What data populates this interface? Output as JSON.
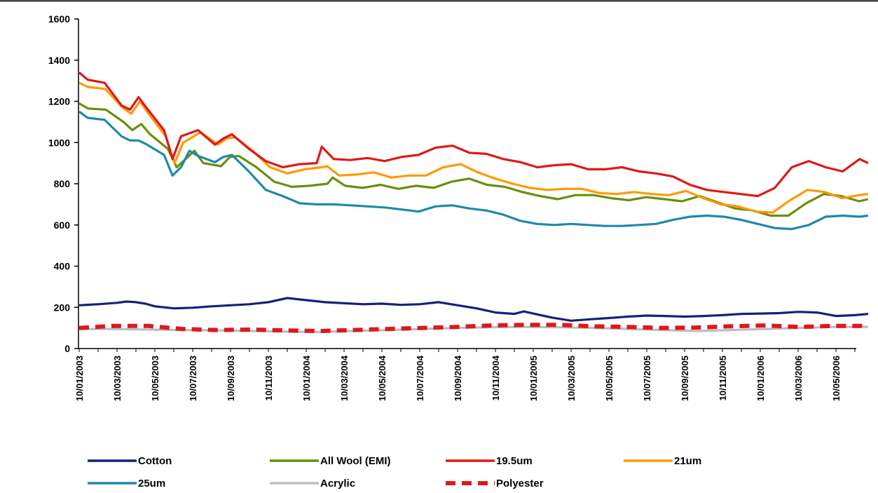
{
  "chart_data": {
    "type": "line",
    "title": "",
    "xlabel": "",
    "ylabel": "",
    "ylim": [
      0,
      1600
    ],
    "yticks": [
      0,
      200,
      400,
      600,
      800,
      1000,
      1200,
      1400,
      1600
    ],
    "grid": false,
    "legend_position": "bottom",
    "x_tick_labels": [
      "10/01/2003",
      "10/03/2003",
      "10/05/2003",
      "10/07/2003",
      "10/09/2003",
      "10/11/2003",
      "10/01/2004",
      "10/03/2004",
      "10/05/2004",
      "10/07/2004",
      "10/09/2004",
      "10/11/2004",
      "10/01/2005",
      "10/03/2005",
      "10/05/2005",
      "10/07/2005",
      "10/09/2005",
      "10/11/2005",
      "10/01/2006",
      "10/03/2006",
      "10/05/2006"
    ],
    "x_end_months": 41.7,
    "series": [
      {
        "name": "Cotton",
        "color": "#1a1f7a",
        "dash": "solid",
        "points": [
          [
            0,
            210
          ],
          [
            1,
            215
          ],
          [
            2,
            222
          ],
          [
            2.5,
            228
          ],
          [
            3,
            225
          ],
          [
            3.5,
            218
          ],
          [
            4,
            205
          ],
          [
            5,
            195
          ],
          [
            6,
            198
          ],
          [
            7,
            205
          ],
          [
            8,
            210
          ],
          [
            9,
            215
          ],
          [
            10,
            225
          ],
          [
            11,
            245
          ],
          [
            12,
            235
          ],
          [
            13,
            225
          ],
          [
            14,
            220
          ],
          [
            15,
            215
          ],
          [
            16,
            218
          ],
          [
            17,
            212
          ],
          [
            18,
            215
          ],
          [
            19,
            225
          ],
          [
            20,
            210
          ],
          [
            21,
            195
          ],
          [
            22,
            175
          ],
          [
            23,
            168
          ],
          [
            23.5,
            180
          ],
          [
            24,
            170
          ],
          [
            25,
            150
          ],
          [
            26,
            135
          ],
          [
            27,
            142
          ],
          [
            28,
            148
          ],
          [
            29,
            155
          ],
          [
            30,
            160
          ],
          [
            31,
            158
          ],
          [
            32,
            155
          ],
          [
            33,
            158
          ],
          [
            34,
            162
          ],
          [
            35,
            168
          ],
          [
            36,
            170
          ],
          [
            37,
            172
          ],
          [
            38,
            178
          ],
          [
            39,
            175
          ],
          [
            40,
            158
          ],
          [
            41,
            162
          ],
          [
            41.7,
            168
          ]
        ]
      },
      {
        "name": "All Wool (EMI)",
        "color": "#6b8e0a",
        "dash": "solid",
        "points": [
          [
            0,
            1190
          ],
          [
            0.5,
            1165
          ],
          [
            1.5,
            1160
          ],
          [
            2.5,
            1100
          ],
          [
            3,
            1060
          ],
          [
            3.5,
            1090
          ],
          [
            4,
            1040
          ],
          [
            5,
            970
          ],
          [
            5.5,
            880
          ],
          [
            6,
            920
          ],
          [
            6.5,
            960
          ],
          [
            7,
            900
          ],
          [
            8,
            885
          ],
          [
            8.5,
            930
          ],
          [
            9,
            935
          ],
          [
            10,
            880
          ],
          [
            11,
            810
          ],
          [
            12,
            785
          ],
          [
            13,
            790
          ],
          [
            14,
            800
          ],
          [
            14.3,
            830
          ],
          [
            15,
            790
          ],
          [
            16,
            780
          ],
          [
            17,
            795
          ],
          [
            18,
            775
          ],
          [
            19,
            790
          ],
          [
            20,
            780
          ],
          [
            21,
            810
          ],
          [
            22,
            825
          ],
          [
            23,
            795
          ],
          [
            24,
            785
          ],
          [
            25,
            760
          ],
          [
            26,
            740
          ],
          [
            27,
            725
          ],
          [
            28,
            745
          ],
          [
            29,
            745
          ],
          [
            30,
            730
          ],
          [
            31,
            720
          ],
          [
            32,
            735
          ],
          [
            33,
            725
          ],
          [
            34,
            715
          ],
          [
            35,
            740
          ],
          [
            36,
            710
          ],
          [
            37,
            680
          ],
          [
            38,
            670
          ],
          [
            39,
            645
          ],
          [
            40,
            645
          ],
          [
            41,
            705
          ],
          [
            42,
            750
          ],
          [
            43,
            740
          ],
          [
            44,
            715
          ],
          [
            44.5,
            725
          ]
        ]
      },
      {
        "name": "19.5um",
        "color": "#e01818",
        "dash": "solid",
        "points": [
          [
            0,
            1340
          ],
          [
            0.5,
            1305
          ],
          [
            1.5,
            1290
          ],
          [
            2.5,
            1180
          ],
          [
            3,
            1160
          ],
          [
            3.5,
            1220
          ],
          [
            4,
            1165
          ],
          [
            5,
            1060
          ],
          [
            5.5,
            920
          ],
          [
            6,
            1030
          ],
          [
            7,
            1060
          ],
          [
            8,
            990
          ],
          [
            8.5,
            1020
          ],
          [
            9,
            1040
          ],
          [
            10,
            970
          ],
          [
            11,
            910
          ],
          [
            12,
            880
          ],
          [
            13,
            895
          ],
          [
            14,
            900
          ],
          [
            14.3,
            980
          ],
          [
            15,
            920
          ],
          [
            16,
            915
          ],
          [
            17,
            925
          ],
          [
            18,
            910
          ],
          [
            19,
            930
          ],
          [
            20,
            940
          ],
          [
            21,
            975
          ],
          [
            22,
            985
          ],
          [
            23,
            950
          ],
          [
            24,
            945
          ],
          [
            25,
            920
          ],
          [
            26,
            905
          ],
          [
            27,
            880
          ],
          [
            28,
            890
          ],
          [
            29,
            895
          ],
          [
            30,
            870
          ],
          [
            31,
            870
          ],
          [
            32,
            880
          ],
          [
            33,
            860
          ],
          [
            34,
            850
          ],
          [
            35,
            835
          ],
          [
            36,
            795
          ],
          [
            37,
            770
          ],
          [
            38,
            760
          ],
          [
            39,
            750
          ],
          [
            40,
            740
          ],
          [
            41,
            780
          ],
          [
            42,
            880
          ],
          [
            43,
            910
          ],
          [
            44,
            880
          ],
          [
            45,
            860
          ],
          [
            46,
            920
          ],
          [
            46.5,
            900
          ]
        ]
      },
      {
        "name": "21um",
        "color": "#ff9a00",
        "dash": "solid",
        "points": [
          [
            0,
            1290
          ],
          [
            0.5,
            1270
          ],
          [
            1.5,
            1260
          ],
          [
            2.5,
            1170
          ],
          [
            3,
            1140
          ],
          [
            3.5,
            1200
          ],
          [
            4,
            1140
          ],
          [
            5,
            1030
          ],
          [
            5.5,
            900
          ],
          [
            6,
            1000
          ],
          [
            7,
            1050
          ],
          [
            8,
            990
          ],
          [
            8.5,
            1020
          ],
          [
            9,
            1025
          ],
          [
            10,
            960
          ],
          [
            11,
            880
          ],
          [
            12,
            850
          ],
          [
            13,
            870
          ],
          [
            14,
            880
          ],
          [
            14.3,
            885
          ],
          [
            15,
            840
          ],
          [
            16,
            845
          ],
          [
            17,
            855
          ],
          [
            18,
            830
          ],
          [
            19,
            840
          ],
          [
            20,
            840
          ],
          [
            21,
            880
          ],
          [
            22,
            895
          ],
          [
            23,
            855
          ],
          [
            24,
            825
          ],
          [
            25,
            800
          ],
          [
            26,
            780
          ],
          [
            27,
            770
          ],
          [
            28,
            775
          ],
          [
            29,
            775
          ],
          [
            30,
            755
          ],
          [
            31,
            750
          ],
          [
            32,
            760
          ],
          [
            33,
            750
          ],
          [
            34,
            745
          ],
          [
            35,
            765
          ],
          [
            36,
            730
          ],
          [
            37,
            700
          ],
          [
            38,
            690
          ],
          [
            39,
            665
          ],
          [
            40,
            660
          ],
          [
            41,
            720
          ],
          [
            42,
            770
          ],
          [
            43,
            760
          ],
          [
            44,
            730
          ],
          [
            45,
            745
          ],
          [
            45.5,
            750
          ]
        ]
      },
      {
        "name": "25um",
        "color": "#1e8aa8",
        "dash": "solid",
        "points": [
          [
            0,
            1150
          ],
          [
            0.5,
            1120
          ],
          [
            1.5,
            1110
          ],
          [
            2.5,
            1030
          ],
          [
            3,
            1010
          ],
          [
            3.5,
            1010
          ],
          [
            4,
            990
          ],
          [
            5,
            940
          ],
          [
            5.5,
            840
          ],
          [
            6,
            880
          ],
          [
            6.5,
            960
          ],
          [
            7,
            935
          ],
          [
            8,
            905
          ],
          [
            8.5,
            930
          ],
          [
            9,
            940
          ],
          [
            10,
            860
          ],
          [
            11,
            770
          ],
          [
            12,
            740
          ],
          [
            13,
            705
          ],
          [
            14,
            700
          ],
          [
            15,
            700
          ],
          [
            16,
            695
          ],
          [
            17,
            690
          ],
          [
            18,
            685
          ],
          [
            19,
            675
          ],
          [
            20,
            665
          ],
          [
            21,
            690
          ],
          [
            22,
            695
          ],
          [
            23,
            680
          ],
          [
            24,
            670
          ],
          [
            25,
            650
          ],
          [
            26,
            620
          ],
          [
            27,
            605
          ],
          [
            28,
            600
          ],
          [
            29,
            605
          ],
          [
            30,
            600
          ],
          [
            31,
            595
          ],
          [
            32,
            595
          ],
          [
            33,
            600
          ],
          [
            34,
            605
          ],
          [
            35,
            625
          ],
          [
            36,
            640
          ],
          [
            37,
            645
          ],
          [
            38,
            640
          ],
          [
            39,
            625
          ],
          [
            40,
            605
          ],
          [
            41,
            585
          ],
          [
            42,
            580
          ],
          [
            43,
            600
          ],
          [
            44,
            640
          ],
          [
            45,
            645
          ],
          [
            46,
            640
          ],
          [
            46.5,
            645
          ]
        ]
      },
      {
        "name": "Acrylic",
        "color": "#bdbdbd",
        "dash": "solid",
        "points": [
          [
            0,
            95
          ],
          [
            2,
            95
          ],
          [
            4,
            92
          ],
          [
            6,
            90
          ],
          [
            8,
            88
          ],
          [
            10,
            85
          ],
          [
            12,
            82
          ],
          [
            14,
            80
          ],
          [
            16,
            85
          ],
          [
            18,
            90
          ],
          [
            20,
            95
          ],
          [
            22,
            100
          ],
          [
            24,
            103
          ],
          [
            26,
            105
          ],
          [
            28,
            103
          ],
          [
            30,
            100
          ],
          [
            32,
            95
          ],
          [
            34,
            90
          ],
          [
            36,
            85
          ],
          [
            38,
            90
          ],
          [
            40,
            95
          ],
          [
            42,
            100
          ],
          [
            44,
            105
          ],
          [
            46,
            105
          ]
        ]
      },
      {
        "name": "Polyester",
        "color": "#e01818",
        "dash": "dashed",
        "points": [
          [
            0,
            100
          ],
          [
            2,
            110
          ],
          [
            4,
            110
          ],
          [
            6,
            95
          ],
          [
            8,
            90
          ],
          [
            10,
            92
          ],
          [
            12,
            88
          ],
          [
            14,
            85
          ],
          [
            16,
            90
          ],
          [
            18,
            95
          ],
          [
            20,
            100
          ],
          [
            22,
            105
          ],
          [
            24,
            112
          ],
          [
            26,
            115
          ],
          [
            28,
            115
          ],
          [
            30,
            108
          ],
          [
            32,
            105
          ],
          [
            34,
            100
          ],
          [
            36,
            102
          ],
          [
            38,
            108
          ],
          [
            40,
            112
          ],
          [
            42,
            105
          ],
          [
            44,
            110
          ],
          [
            46,
            110
          ]
        ]
      }
    ]
  }
}
